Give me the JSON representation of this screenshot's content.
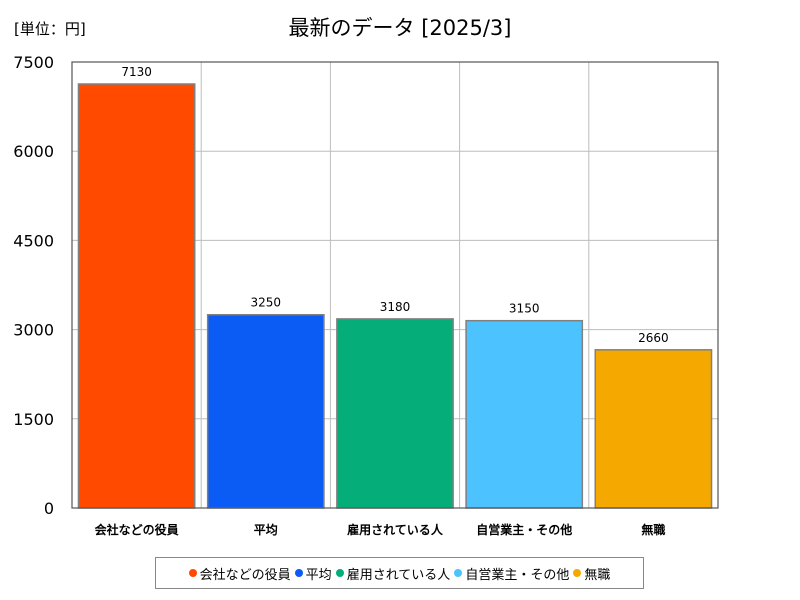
{
  "header": {
    "unit": "[単位：円]",
    "title": "最新のデータ [2025/3]"
  },
  "chart_data": {
    "type": "bar",
    "title": "最新のデータ [2025/3]",
    "unit": "[単位：円]",
    "categories": [
      "会社などの役員",
      "平均",
      "雇用されている人",
      "自営業主・その他",
      "無職"
    ],
    "values": [
      7130,
      3250,
      3180,
      3150,
      2660
    ],
    "colors": [
      "#ff4a00",
      "#0a5cf5",
      "#05ae79",
      "#4cc3ff",
      "#f5a800"
    ],
    "yticks": [
      0,
      1500,
      3000,
      4500,
      6000,
      7500
    ],
    "ylim": [
      0,
      7500
    ],
    "grid": true,
    "legend": "bottom"
  },
  "legend": {
    "items": [
      {
        "label": "会社などの役員",
        "color": "#ff4a00"
      },
      {
        "label": "平均",
        "color": "#0a5cf5"
      },
      {
        "label": "雇用されている人",
        "color": "#05ae79"
      },
      {
        "label": "自営業主・その他",
        "color": "#4cc3ff"
      },
      {
        "label": "無職",
        "color": "#f5a800"
      }
    ]
  }
}
